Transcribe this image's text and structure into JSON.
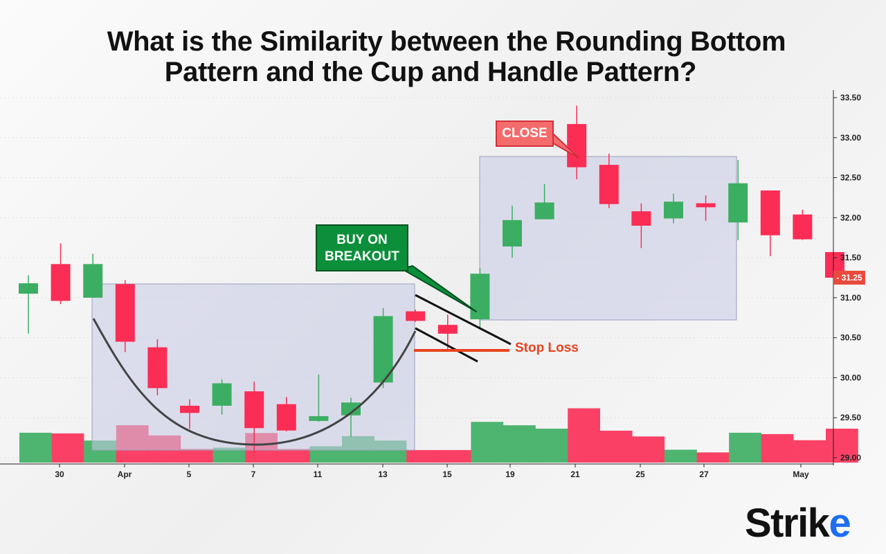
{
  "title": {
    "line1": "What is the Similarity between the Rounding Bottom",
    "line2": "Pattern and the Cup and Handle Pattern?"
  },
  "annotations": {
    "buy_line1": "BUY ON",
    "buy_line2": "BREAKOUT",
    "close": "CLOSE",
    "stop_loss": "Stop Loss"
  },
  "last_price_badge": "- 31.25",
  "logo": {
    "text_main": "Strik",
    "text_accent": "e"
  },
  "colors": {
    "up": "#3cae63",
    "down": "#fb2d55",
    "grid": "#cccccc",
    "box": "#c8cbe6",
    "cup": "#444444",
    "stop": "#e8431e"
  },
  "chart_data": {
    "type": "candlestick",
    "x_tick_labels": [
      "30",
      "Apr",
      "5",
      "7",
      "11",
      "13",
      "15",
      "19",
      "21",
      "25",
      "27",
      "May"
    ],
    "y_ticks": [
      "33.50",
      "33.00",
      "32.50",
      "32.00",
      "31.50",
      "31.00",
      "30.50",
      "30.00",
      "29.50",
      "29.00"
    ],
    "ylim": [
      29.0,
      33.6
    ],
    "candles": [
      {
        "o": 31.05,
        "h": 31.28,
        "l": 30.55,
        "c": 31.18
      },
      {
        "o": 31.42,
        "h": 31.68,
        "l": 30.92,
        "c": 30.96
      },
      {
        "o": 31.0,
        "h": 31.55,
        "l": 31.0,
        "c": 31.42
      },
      {
        "o": 31.17,
        "h": 31.22,
        "l": 30.32,
        "c": 30.45
      },
      {
        "o": 30.38,
        "h": 30.48,
        "l": 29.78,
        "c": 29.87
      },
      {
        "o": 29.65,
        "h": 29.73,
        "l": 29.36,
        "c": 29.56
      },
      {
        "o": 29.65,
        "h": 29.98,
        "l": 29.54,
        "c": 29.93
      },
      {
        "o": 29.83,
        "h": 29.95,
        "l": 29.02,
        "c": 29.37
      },
      {
        "o": 29.67,
        "h": 29.76,
        "l": 29.33,
        "c": 29.34
      },
      {
        "o": 29.46,
        "h": 30.04,
        "l": 29.45,
        "c": 29.52
      },
      {
        "o": 29.53,
        "h": 29.75,
        "l": 29.26,
        "c": 29.69
      },
      {
        "o": 29.94,
        "h": 30.87,
        "l": 29.87,
        "c": 30.77
      },
      {
        "o": 30.83,
        "h": 30.85,
        "l": 30.7,
        "c": 30.71
      },
      {
        "o": 30.66,
        "h": 30.79,
        "l": 30.36,
        "c": 30.55
      },
      {
        "o": 30.73,
        "h": 31.37,
        "l": 30.6,
        "c": 31.3
      },
      {
        "o": 31.64,
        "h": 32.15,
        "l": 31.5,
        "c": 31.97
      },
      {
        "o": 31.98,
        "h": 32.42,
        "l": 31.98,
        "c": 32.19
      },
      {
        "o": 33.17,
        "h": 33.4,
        "l": 32.48,
        "c": 32.63
      },
      {
        "o": 32.66,
        "h": 32.8,
        "l": 32.12,
        "c": 32.17
      },
      {
        "o": 32.08,
        "h": 32.18,
        "l": 31.62,
        "c": 31.9
      },
      {
        "o": 31.99,
        "h": 32.3,
        "l": 31.93,
        "c": 32.2
      },
      {
        "o": 32.18,
        "h": 32.28,
        "l": 31.96,
        "c": 32.13
      },
      {
        "o": 31.94,
        "h": 32.72,
        "l": 31.72,
        "c": 32.43
      },
      {
        "o": 32.34,
        "h": 32.34,
        "l": 31.52,
        "c": 31.78
      },
      {
        "o": 32.04,
        "h": 32.1,
        "l": 31.72,
        "c": 31.73
      },
      {
        "o": 31.57,
        "h": 31.57,
        "l": 31.24,
        "c": 31.25
      }
    ],
    "volume_levels": [
      0.88,
      0.86,
      0.65,
      1.1,
      0.8,
      0.4,
      0.44,
      0.87,
      0.4,
      0.48,
      0.78,
      0.65,
      0.37,
      0.37,
      1.2,
      1.1,
      1.0,
      1.6,
      0.94,
      0.77,
      0.38,
      0.3,
      0.88,
      0.84,
      0.66,
      1.0
    ],
    "last_price": 31.25
  }
}
